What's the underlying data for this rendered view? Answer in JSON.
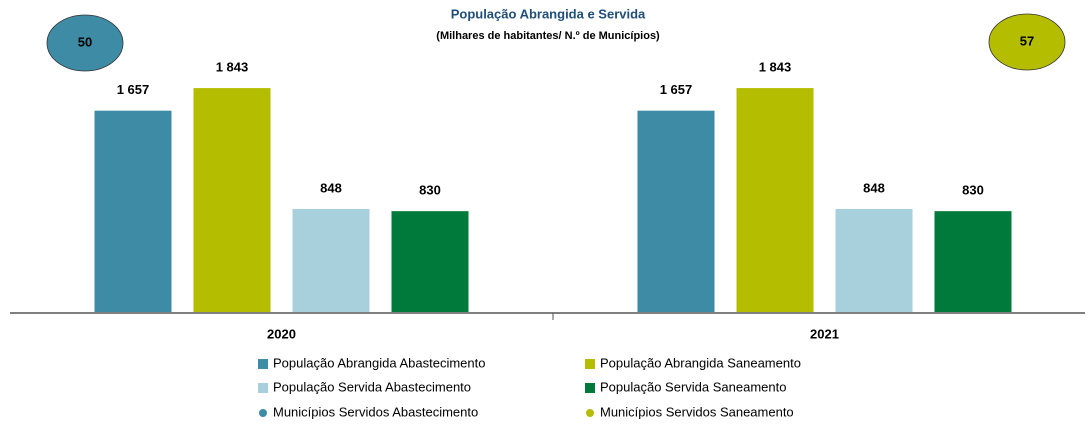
{
  "chart_data": {
    "type": "bar",
    "title": "População Abrangida e Servida",
    "subtitle": "(Milhares de habitantes/ N.º de Municípios)",
    "categories": [
      "2020",
      "2021"
    ],
    "series": [
      {
        "name": "População Abrangida Abastecimento",
        "color": "#3d8ba5",
        "values": [
          1657,
          1657
        ],
        "value_labels": [
          "1 657",
          "1 657"
        ]
      },
      {
        "name": "População Abrangida Saneamento",
        "color": "#b5bd00",
        "values": [
          1843,
          1843
        ],
        "value_labels": [
          "1 843",
          "1 843"
        ]
      },
      {
        "name": "População Servida Abastecimento",
        "color": "#a8cfdc",
        "values": [
          848,
          848
        ]
      },
      {
        "name": "População Servida Saneamento",
        "color": "#007a3a",
        "values": [
          830,
          830
        ]
      }
    ],
    "markers": [
      {
        "name": "Municípios Servidos Abastecimento",
        "color": "#3d8ba5",
        "value": 50
      },
      {
        "name": "Municípios Servidos Saneamento",
        "color": "#b5bd00",
        "value": 57
      }
    ],
    "ylim": [
      0,
      2000
    ]
  }
}
